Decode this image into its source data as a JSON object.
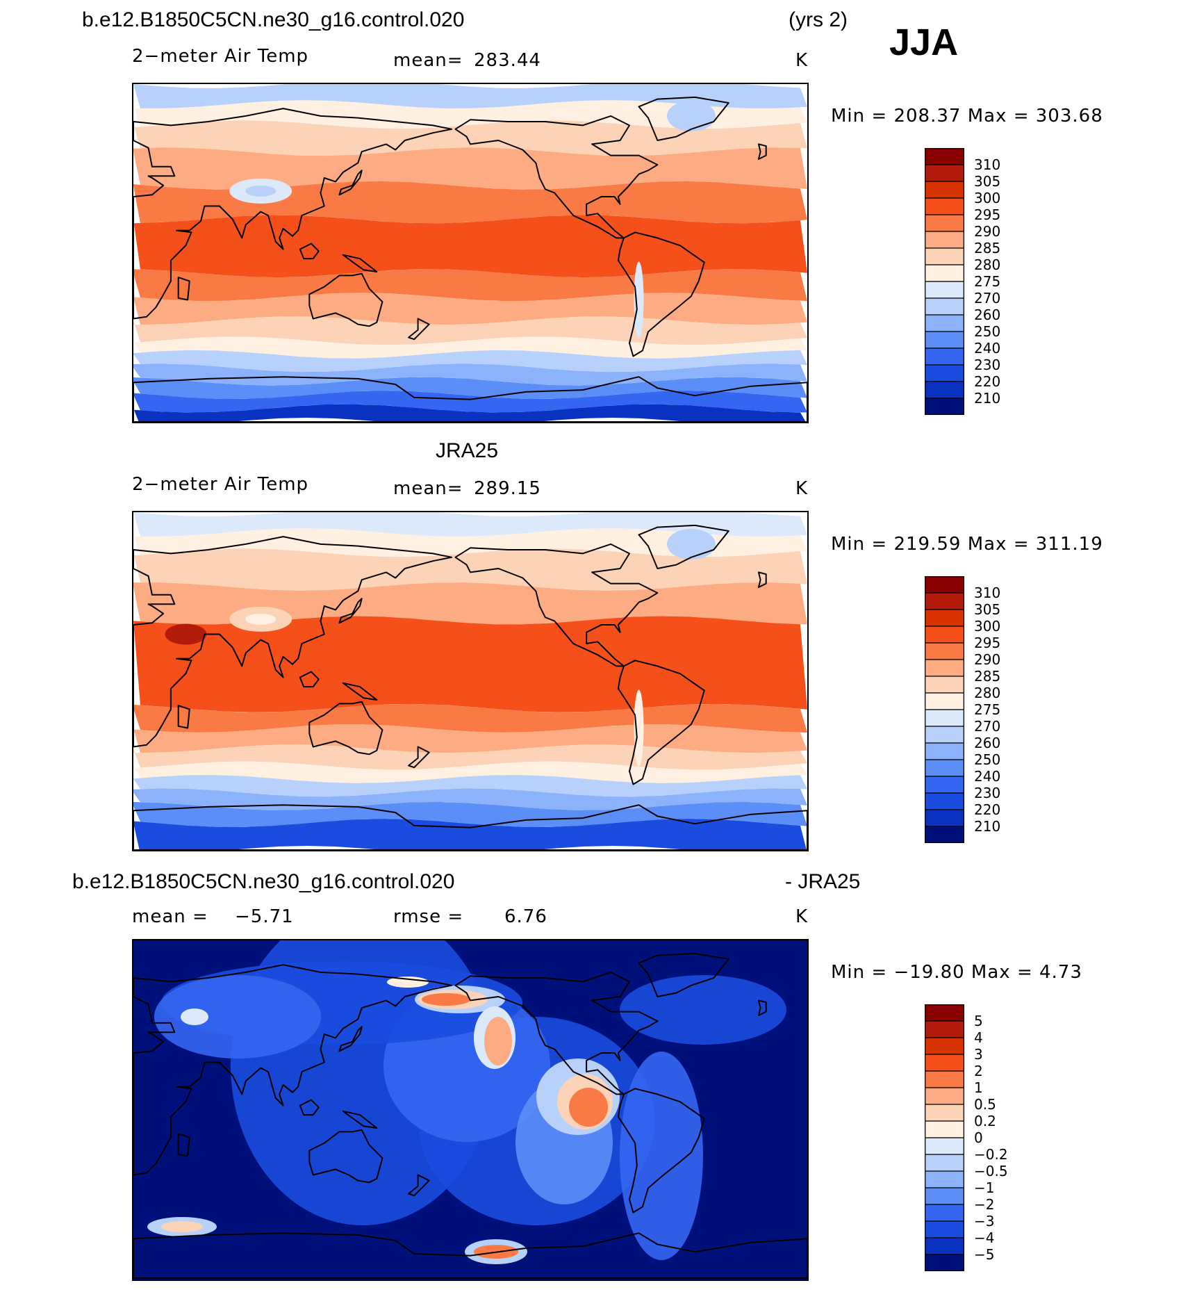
{
  "season": "JJA",
  "panels": [
    {
      "title": "b.e12.B1850C5CN.ne30_g16.control.020",
      "title_right": "(yrs 2)",
      "variable": "2−meter Air Temp",
      "stat_label": "mean=",
      "stat_value": "283.44",
      "units": "K",
      "minmax": "Min  =  208.37  Max  =  303.68",
      "scheme": "abs",
      "colorbar_labels": [
        "310",
        "305",
        "300",
        "295",
        "290",
        "285",
        "280",
        "275",
        "270",
        "260",
        "250",
        "240",
        "230",
        "220",
        "210"
      ]
    },
    {
      "title": "JRA25",
      "variable": "2−meter Air Temp",
      "stat_label": "mean=",
      "stat_value": "289.15",
      "units": "K",
      "minmax": "Min  =  219.59  Max  =  311.19",
      "scheme": "abs_warm",
      "colorbar_labels": [
        "310",
        "305",
        "300",
        "295",
        "290",
        "285",
        "280",
        "275",
        "270",
        "260",
        "250",
        "240",
        "230",
        "220",
        "210"
      ]
    },
    {
      "title": "b.e12.B1850C5CN.ne30_g16.control.020",
      "title_right": "- JRA25",
      "variable": "mean =",
      "stat_value_left": "−5.71",
      "stat_label": "rmse =",
      "stat_value": "6.76",
      "units": "K",
      "minmax": "Min  =  −19.80  Max  =     4.73",
      "scheme": "diff",
      "colorbar_labels": [
        "5",
        "4",
        "3",
        "2",
        "1",
        "0.5",
        "0.2",
        "0",
        "−0.2",
        "−0.5",
        "−1",
        "−2",
        "−3",
        "−4",
        "−5"
      ]
    }
  ],
  "colors": {
    "scale16": [
      "#8b0000",
      "#b31c0b",
      "#d93300",
      "#f5501a",
      "#fa7a45",
      "#fcab82",
      "#fdd3b8",
      "#fff0e1",
      "#dce9fb",
      "#b8d1fb",
      "#8cb2fb",
      "#5c8ef7",
      "#3466f1",
      "#1a4cdf",
      "#0a32c0",
      "#00107a"
    ]
  }
}
